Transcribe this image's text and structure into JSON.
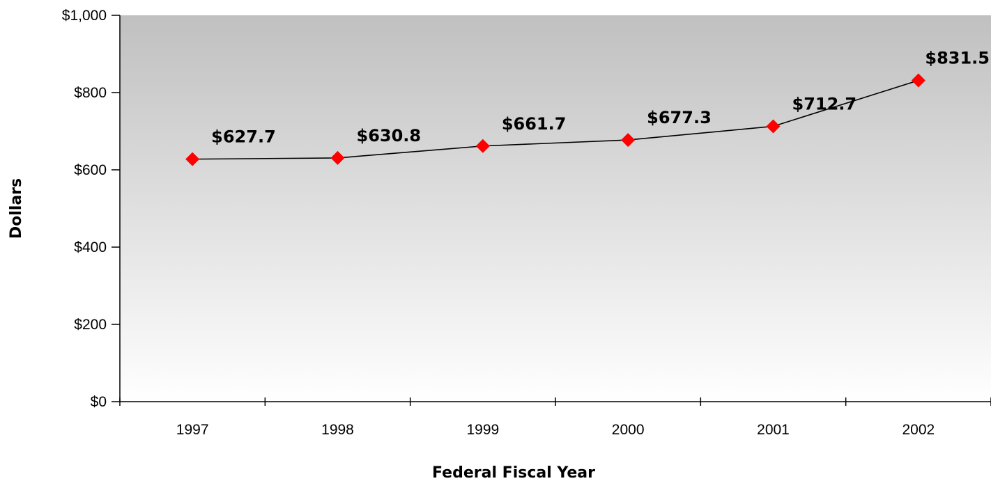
{
  "chart_data": {
    "type": "line",
    "title": "",
    "xlabel": "Federal Fiscal Year",
    "ylabel": "Dollars",
    "categories": [
      "1997",
      "1998",
      "1999",
      "2000",
      "2001",
      "2002"
    ],
    "series": [
      {
        "values": [
          627.7,
          630.8,
          661.7,
          677.3,
          712.7,
          831.5
        ],
        "labels": [
          "$627.7",
          "$630.8",
          "$661.7",
          "$677.3",
          "$712.7",
          "$831.5"
        ]
      }
    ],
    "ylim": [
      0,
      1000
    ],
    "yticks": [
      0,
      200,
      400,
      600,
      800,
      1000
    ],
    "ytick_labels": [
      "$0",
      "$200",
      "$400",
      "$600",
      "$800",
      "$1,000"
    ],
    "grid": false,
    "legend": "none",
    "colors": {
      "line": "#000000",
      "marker": "#ff0000",
      "plot_bg_top": "#c0c0c0",
      "plot_bg_bottom": "#ffffff"
    },
    "marker": "diamond-icon"
  }
}
